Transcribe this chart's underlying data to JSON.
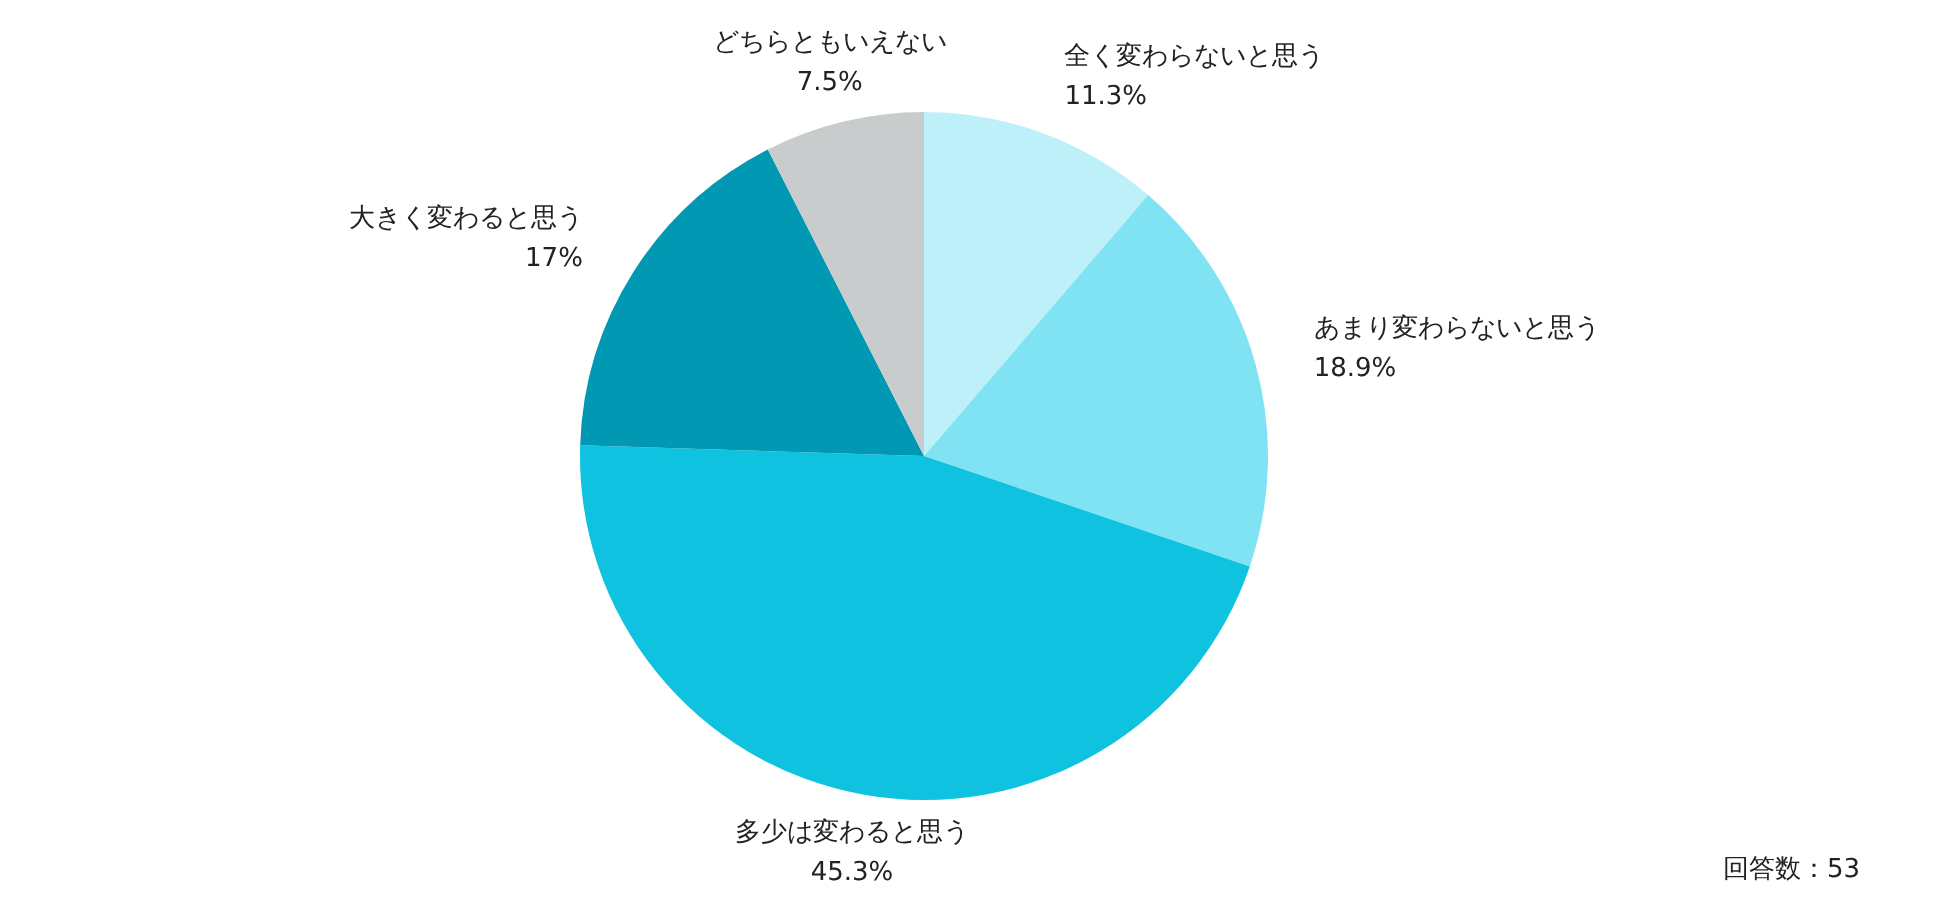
{
  "chart_data": {
    "type": "pie",
    "categories": [
      "全く変わらないと思う",
      "あまり変わらないと思う",
      "多少は変わると思う",
      "大きく変わると思う",
      "どちらともいえない"
    ],
    "values": [
      11.3,
      18.9,
      45.3,
      17,
      7.5
    ],
    "value_labels": [
      "11.3%",
      "18.9%",
      "45.3%",
      "17%",
      "7.5%"
    ],
    "colors": [
      "#bdf0f9",
      "#80e3f4",
      "#0ec2e0",
      "#0098b3",
      "#c8cccd"
    ],
    "annotations": [
      "回答数：53"
    ]
  }
}
